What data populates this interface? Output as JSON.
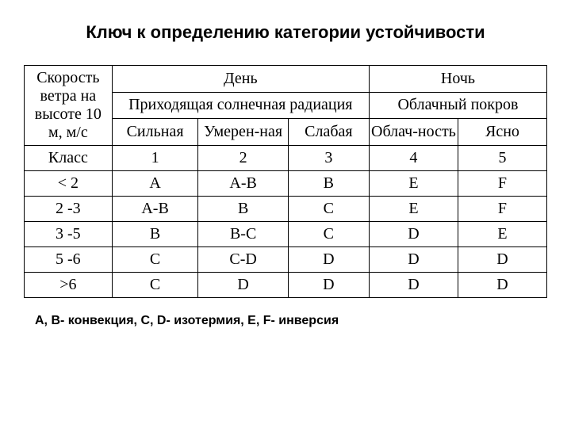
{
  "title": "Ключ к определению категории устойчивости",
  "header": {
    "wind_label": "Скорость ветра на высоте 10 м, м/с",
    "day": "День",
    "night": "Ночь",
    "solar": "Приходящая солнечная радиация",
    "cloud": "Облачный покров",
    "strong": "Сильная",
    "moderate": "Умерен-ная",
    "weak": "Слабая",
    "cloudy": "Облач-ность",
    "clear": "Ясно"
  },
  "rows": [
    {
      "label": "Класс",
      "c1": "1",
      "c2": "2",
      "c3": "3",
      "c4": "4",
      "c5": "5"
    },
    {
      "label": "< 2",
      "c1": "A",
      "c2": "A-B",
      "c3": "B",
      "c4": "E",
      "c5": "F"
    },
    {
      "label": "2 -3",
      "c1": "A-B",
      "c2": "B",
      "c3": "C",
      "c4": "E",
      "c5": "F"
    },
    {
      "label": "3 -5",
      "c1": "B",
      "c2": "B-C",
      "c3": "C",
      "c4": "D",
      "c5": "E"
    },
    {
      "label": "5 -6",
      "c1": "C",
      "c2": "C-D",
      "c3": "D",
      "c4": "D",
      "c5": "D"
    },
    {
      "label": ">6",
      "c1": "C",
      "c2": "D",
      "c3": "D",
      "c4": "D",
      "c5": "D"
    }
  ],
  "footnote": "A, B- конвекция, C, D- изотермия, E, F- инверсия",
  "style": {
    "background_color": "#ffffff",
    "text_color": "#000000",
    "border_color": "#000000",
    "title_font": "Arial",
    "body_font": "Times New Roman",
    "title_fontsize_pt": 17,
    "cell_fontsize_pt": 15,
    "footnote_fontsize_pt": 12,
    "column_widths_pct": [
      16.8,
      16.5,
      17.2,
      15.5,
      17.0,
      17.0
    ]
  }
}
